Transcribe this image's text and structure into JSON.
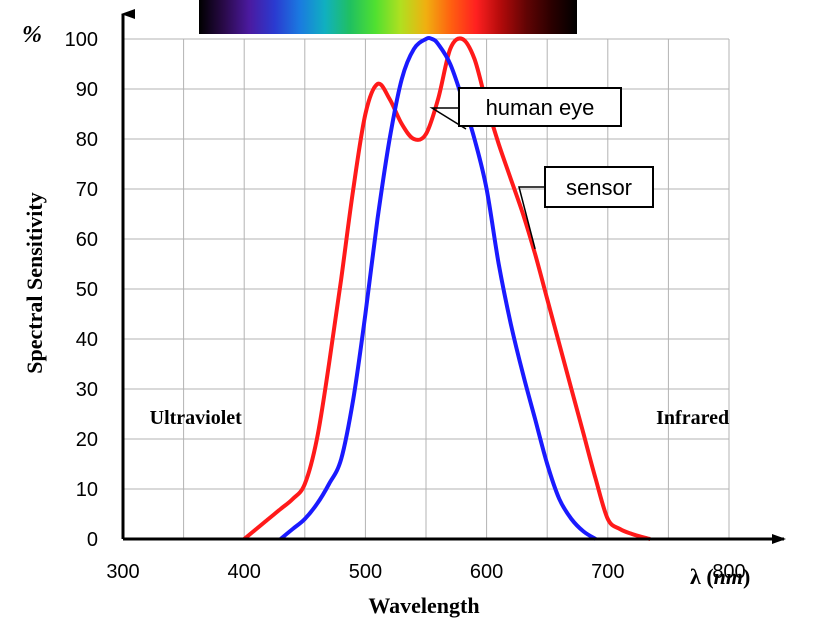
{
  "chart_data": {
    "type": "line",
    "ylabel": "Spectral Sensitivity",
    "y_unit": "%",
    "xlabel": "Wavelength",
    "x_unit_symbol": "λ",
    "x_unit": "nm",
    "xlim": [
      300,
      800
    ],
    "ylim": [
      0,
      100
    ],
    "x_ticks": [
      300,
      400,
      500,
      600,
      700,
      800
    ],
    "y_ticks": [
      0,
      10,
      20,
      30,
      40,
      50,
      60,
      70,
      80,
      90,
      100
    ],
    "grid": true,
    "region_labels": [
      {
        "text": "Ultraviolet",
        "x": 360,
        "y": 23
      },
      {
        "text": "Infrared",
        "x": 770,
        "y": 23
      }
    ],
    "callouts": [
      {
        "text": "human eye",
        "series": 1,
        "x": 583,
        "y": 82
      },
      {
        "text": "sensor",
        "series": 0,
        "x": 640,
        "y": 58
      }
    ],
    "spectrum_bar": {
      "colors": [
        "#000000",
        "#2a0a4a",
        "#4b1aa0",
        "#2a3ad0",
        "#1a7ae0",
        "#10b0c0",
        "#20c060",
        "#50e030",
        "#b0e020",
        "#f0b010",
        "#ff6010",
        "#ff2020",
        "#b00a0a",
        "#600404",
        "#2a0000",
        "#000000"
      ]
    },
    "series": [
      {
        "color": "#ff1a1a",
        "x": [
          400,
          410,
          420,
          430,
          440,
          450,
          460,
          470,
          480,
          490,
          500,
          510,
          520,
          530,
          540,
          550,
          560,
          570,
          580,
          590,
          600,
          610,
          620,
          630,
          640,
          650,
          660,
          670,
          680,
          690,
          700,
          710,
          720,
          730,
          735
        ],
        "y": [
          0,
          2,
          4,
          6,
          8,
          11,
          20,
          35,
          52,
          70,
          85,
          91,
          88,
          83,
          80,
          81,
          88,
          98,
          100,
          96,
          87,
          79,
          72,
          65,
          57,
          48,
          39,
          30,
          21,
          12,
          4,
          2,
          1,
          0.3,
          0
        ]
      },
      {
        "color": "#1a1aff",
        "x": [
          430,
          440,
          450,
          460,
          470,
          480,
          490,
          500,
          510,
          520,
          530,
          540,
          550,
          555,
          560,
          570,
          580,
          590,
          600,
          610,
          620,
          630,
          640,
          650,
          660,
          670,
          680,
          690
        ],
        "y": [
          0,
          2,
          4,
          7,
          11,
          16,
          28,
          45,
          64,
          80,
          92,
          98,
          100,
          100,
          99,
          95,
          88,
          80,
          70,
          55,
          43,
          33,
          24,
          15,
          8,
          4,
          1.5,
          0
        ]
      }
    ]
  }
}
